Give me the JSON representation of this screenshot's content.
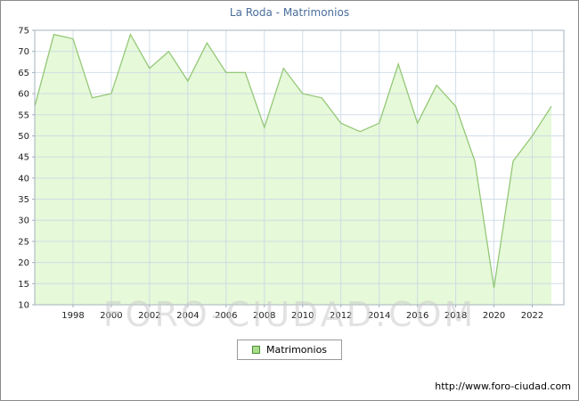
{
  "chart_data": {
    "type": "area",
    "title": "La Roda - Matrimonios",
    "x": [
      1996,
      1997,
      1998,
      1999,
      2000,
      2001,
      2002,
      2003,
      2004,
      2005,
      2006,
      2007,
      2008,
      2009,
      2010,
      2011,
      2012,
      2013,
      2014,
      2015,
      2016,
      2017,
      2018,
      2019,
      2020,
      2021,
      2022,
      2023
    ],
    "series": [
      {
        "name": "Matrimonios",
        "values": [
          57,
          74,
          73,
          59,
          60,
          74,
          66,
          70,
          63,
          72,
          65,
          65,
          52,
          66,
          60,
          59,
          53,
          51,
          53,
          67,
          53,
          62,
          57,
          44,
          14,
          44,
          50,
          57
        ]
      }
    ],
    "ylim": [
      10,
      75
    ],
    "yticks": [
      10,
      15,
      20,
      25,
      30,
      35,
      40,
      45,
      50,
      55,
      60,
      65,
      70,
      75
    ],
    "xticks": [
      1998,
      2000,
      2002,
      2004,
      2006,
      2008,
      2010,
      2012,
      2014,
      2016,
      2018,
      2020,
      2022
    ],
    "grid": true,
    "legend_position": "bottom",
    "colors": {
      "title": "#4a6e9b",
      "grid": "#c8d6e4",
      "area_fill": "#e6f9d9",
      "area_line": "#94c877",
      "axis_text": "#222222",
      "frame": "#a4b2be",
      "legend_swatch_fill": "#aade8c",
      "legend_swatch_border": "#4c8f3a",
      "watermark": "#cccccc"
    }
  },
  "watermark": "FORO-CIUDAD.COM",
  "footer": {
    "url": "http://www.foro-ciudad.com"
  }
}
